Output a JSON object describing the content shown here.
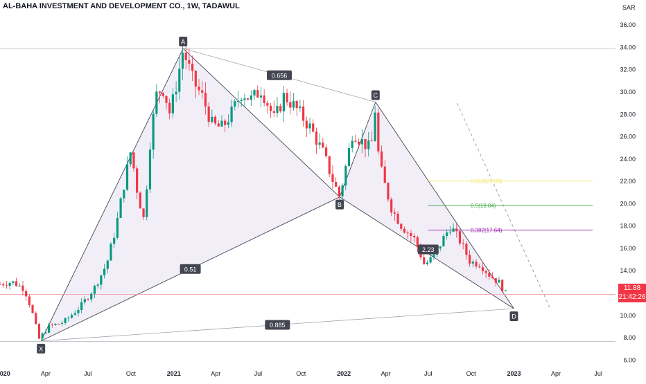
{
  "title": "AL-BAHA INVESTMENT AND DEVELOPMENT CO., 1W, TADAWUL",
  "currency": "SAR",
  "last_price": "11.88",
  "countdown": "21:42:26",
  "colors": {
    "up": "#089981",
    "down": "#f23645",
    "pattern_fill": "#ece8f5",
    "pattern_line": "#9598a1"
  },
  "chart_data": {
    "type": "candlestick",
    "title": "AL-BAHA INVESTMENT AND DEVELOPMENT CO., 1W, TADAWUL",
    "ylabel": "SAR",
    "ylim": [
      5.4,
      37.0
    ],
    "xlim": [
      "2019-12-25",
      "2023-08-07"
    ],
    "y_ticks": [
      "6.00",
      "8.00",
      "10.00",
      "12.00",
      "14.00",
      "16.00",
      "18.00",
      "20.00",
      "22.00",
      "24.00",
      "26.00",
      "28.00",
      "30.00",
      "32.00",
      "34.00",
      "36.00"
    ],
    "x_ticks": [
      {
        "label": "2020",
        "date": "2020-01-01"
      },
      {
        "label": "Apr",
        "date": "2020-04-01"
      },
      {
        "label": "Jul",
        "date": "2020-07-01"
      },
      {
        "label": "Oct",
        "date": "2020-10-01"
      },
      {
        "label": "2021",
        "date": "2021-01-01"
      },
      {
        "label": "Apr",
        "date": "2021-04-01"
      },
      {
        "label": "Jul",
        "date": "2021-07-01"
      },
      {
        "label": "Oct",
        "date": "2021-10-01"
      },
      {
        "label": "2022",
        "date": "2022-01-01"
      },
      {
        "label": "Apr",
        "date": "2022-04-01"
      },
      {
        "label": "Jul",
        "date": "2022-07-01"
      },
      {
        "label": "Oct",
        "date": "2022-10-01"
      },
      {
        "label": "2023",
        "date": "2023-01-01"
      },
      {
        "label": "Apr",
        "date": "2023-04-01"
      },
      {
        "label": "Jul",
        "date": "2023-07-01"
      }
    ],
    "close_anchors": [
      [
        "2019-12-25",
        12.8
      ],
      [
        "2020-01-20",
        13.0
      ],
      [
        "2020-02-15",
        12.4
      ],
      [
        "2020-03-01",
        10.6
      ],
      [
        "2020-03-18",
        7.9
      ],
      [
        "2020-04-08",
        9.0
      ],
      [
        "2020-05-10",
        9.4
      ],
      [
        "2020-06-15",
        10.8
      ],
      [
        "2020-07-15",
        12.5
      ],
      [
        "2020-08-10",
        14.6
      ],
      [
        "2020-08-30",
        17.9
      ],
      [
        "2020-09-15",
        21.5
      ],
      [
        "2020-10-01",
        24.8
      ],
      [
        "2020-10-15",
        21.0
      ],
      [
        "2020-10-29",
        18.5
      ],
      [
        "2020-11-12",
        26.0
      ],
      [
        "2020-11-26",
        30.0
      ],
      [
        "2020-12-10",
        30.3
      ],
      [
        "2020-12-24",
        28.0
      ],
      [
        "2021-01-07",
        30.8
      ],
      [
        "2021-01-21",
        33.8
      ],
      [
        "2021-02-11",
        31.0
      ],
      [
        "2021-03-04",
        29.5
      ],
      [
        "2021-03-25",
        27.0
      ],
      [
        "2021-04-15",
        26.8
      ],
      [
        "2021-05-06",
        28.2
      ],
      [
        "2021-05-27",
        30.0
      ],
      [
        "2021-06-17",
        29.3
      ],
      [
        "2021-07-08",
        30.3
      ],
      [
        "2021-08-05",
        27.5
      ],
      [
        "2021-08-26",
        29.7
      ],
      [
        "2021-09-23",
        28.4
      ],
      [
        "2021-10-21",
        26.8
      ],
      [
        "2021-11-18",
        24.5
      ],
      [
        "2021-12-09",
        22.0
      ],
      [
        "2021-12-23",
        20.6
      ],
      [
        "2022-01-06",
        23.5
      ],
      [
        "2022-01-20",
        26.5
      ],
      [
        "2022-02-03",
        25.8
      ],
      [
        "2022-02-24",
        25.0
      ],
      [
        "2022-03-03",
        25.6
      ],
      [
        "2022-03-10",
        28.9
      ],
      [
        "2022-03-17",
        23.8
      ],
      [
        "2022-03-31",
        21.5
      ],
      [
        "2022-04-14",
        19.5
      ],
      [
        "2022-05-05",
        18.0
      ],
      [
        "2022-06-02",
        16.8
      ],
      [
        "2022-06-23",
        14.5
      ],
      [
        "2022-07-14",
        15.3
      ],
      [
        "2022-08-04",
        17.0
      ],
      [
        "2022-08-18",
        18.0
      ],
      [
        "2022-09-08",
        16.6
      ],
      [
        "2022-09-29",
        14.8
      ],
      [
        "2022-10-20",
        14.6
      ],
      [
        "2022-11-10",
        13.6
      ],
      [
        "2022-12-01",
        12.9
      ],
      [
        "2022-12-15",
        11.88
      ]
    ],
    "harmonic_pattern": {
      "points": [
        {
          "label": "X",
          "date": "2020-03-22",
          "price": 7.7
        },
        {
          "label": "A",
          "date": "2021-01-21",
          "price": 33.9
        },
        {
          "label": "B",
          "date": "2021-12-23",
          "price": 20.6
        },
        {
          "label": "C",
          "date": "2022-03-10",
          "price": 29.1
        },
        {
          "label": "D",
          "date": "2023-01-01",
          "price": 10.6
        }
      ],
      "ratios": [
        {
          "label": "0.51",
          "from": "X",
          "to": "B"
        },
        {
          "label": "0.656",
          "from": "A",
          "to": "C"
        },
        {
          "label": "0.885",
          "from": "X",
          "to": "D"
        },
        {
          "label": "2.23",
          "from": "B",
          "to": "D"
        }
      ]
    },
    "fib_levels": [
      {
        "label": "0.618(22.03)",
        "ratio": "0.618",
        "price": 22.03,
        "color": "#f2e86d"
      },
      {
        "label": "0.5(19.84)",
        "ratio": "0.5",
        "price": 19.84,
        "color": "#4caf50"
      },
      {
        "label": "0.382(17.64)",
        "ratio": "0.382",
        "price": 17.64,
        "color": "#9c27b0"
      }
    ],
    "horizontal_lines": [
      {
        "price": 33.9,
        "color": "#b2b5be"
      },
      {
        "price": 7.65,
        "color": "#b2b5be"
      },
      {
        "price": 11.88,
        "color": "#f7a1a8"
      }
    ],
    "projection_line": {
      "from": {
        "date": "2022-09-01",
        "price": 29.0
      },
      "to": {
        "date": "2023-03-20",
        "price": 10.6
      }
    }
  }
}
